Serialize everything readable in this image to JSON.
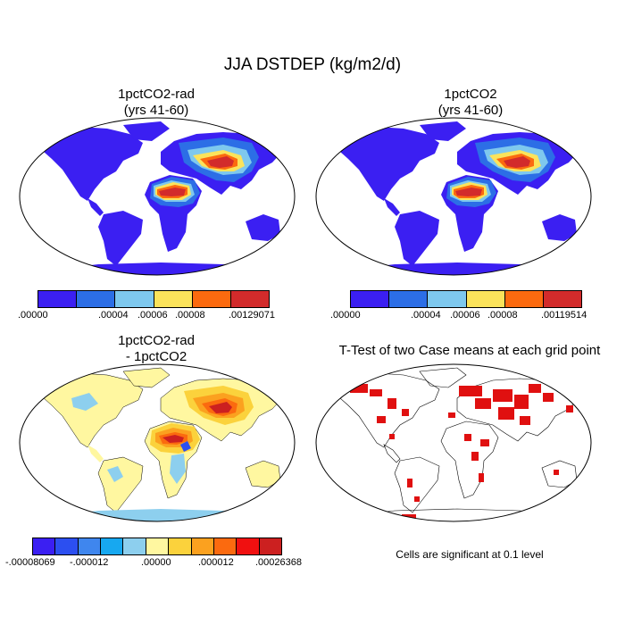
{
  "title": "JJA DSTDEP (kg/m2/d)",
  "panels": [
    {
      "id": "p1",
      "title_line1": "1pctCO2-rad",
      "title_line2": "(yrs 41-60)",
      "kind": "field"
    },
    {
      "id": "p2",
      "title_line1": "1pctCO2",
      "title_line2": "(yrs 41-60)",
      "kind": "field"
    },
    {
      "id": "p3",
      "title_line1": "1pctCO2-rad",
      "title_line2": "- 1pctCO2",
      "kind": "diff"
    },
    {
      "id": "p4",
      "title_line1": "T-Test of two Case means at each grid point",
      "title_line2": "",
      "kind": "ttest"
    }
  ],
  "colorbars": {
    "p1": {
      "colors": [
        "#3b1ff2",
        "#2c6ee6",
        "#7ec8ee",
        "#fbe35b",
        "#fb6a0f",
        "#d22b2b"
      ],
      "labels": [
        ".00000",
        ".00004",
        ".00006",
        ".00008",
        ".00129071"
      ]
    },
    "p2": {
      "colors": [
        "#3b1ff2",
        "#2c6ee6",
        "#7ec8ee",
        "#fbe35b",
        "#fb6a0f",
        "#d22b2b"
      ],
      "labels": [
        ".00000",
        ".00004",
        ".00006",
        ".00008",
        ".00119514"
      ]
    },
    "p3": {
      "colors": [
        "#3b1ff2",
        "#2c4ff0",
        "#3f86ee",
        "#17a8f0",
        "#8dcfee",
        "#fff7a0",
        "#fbd23c",
        "#fba11f",
        "#fb6a0f",
        "#f01010",
        "#cc2020"
      ],
      "labels": [
        "-.00008069",
        "-.000012",
        ".00000",
        ".000012",
        ".00026368"
      ]
    }
  },
  "note": "Cells are significant at 0.1 level"
}
